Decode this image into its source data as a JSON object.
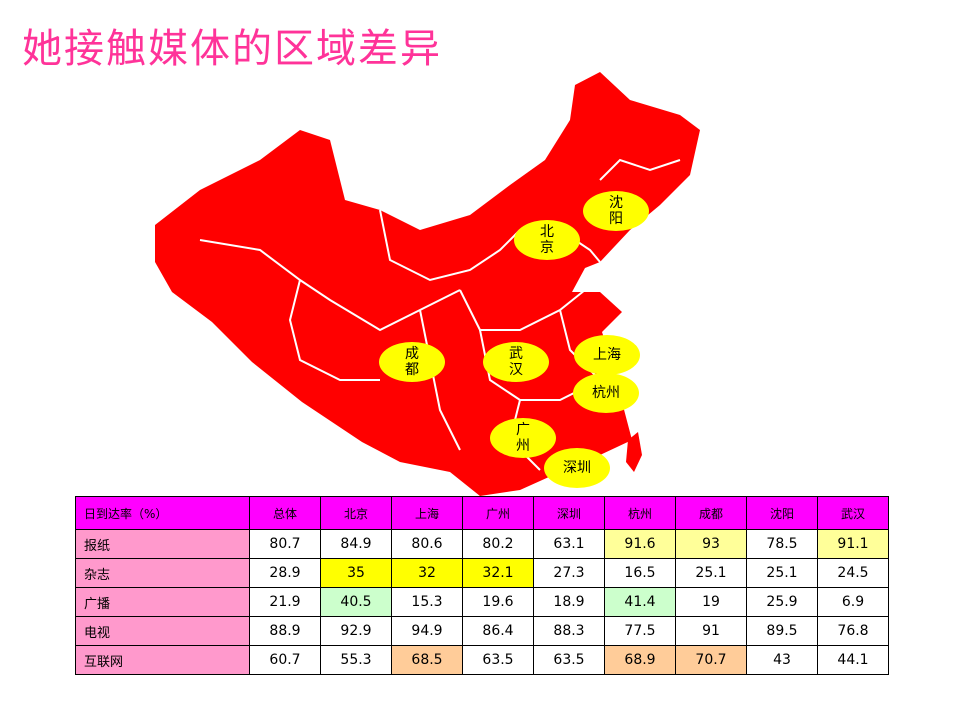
{
  "header": {
    "title": "她接触媒体的区域差异"
  },
  "map": {
    "cities": [
      "北京",
      "沈阳",
      "成都",
      "武汉",
      "上海",
      "杭州",
      "广州",
      "深圳"
    ]
  },
  "table": {
    "columns": [
      "日到达率（%）",
      "总体",
      "北京",
      "上海",
      "广州",
      "深圳",
      "杭州",
      "成都",
      "沈阳",
      "武汉"
    ],
    "rows": [
      {
        "label": "报纸",
        "values": [
          80.7,
          84.9,
          80.6,
          80.2,
          63.1,
          91.6,
          93,
          78.5,
          91.1
        ]
      },
      {
        "label": "杂志",
        "values": [
          28.9,
          35,
          32,
          32.1,
          27.3,
          16.5,
          25.1,
          25.1,
          24.5
        ]
      },
      {
        "label": "广播",
        "values": [
          21.9,
          40.5,
          15.3,
          19.6,
          18.9,
          41.4,
          19,
          25.9,
          6.9
        ]
      },
      {
        "label": "电视",
        "values": [
          88.9,
          92.9,
          94.9,
          86.4,
          88.3,
          77.5,
          91,
          89.5,
          76.8
        ]
      },
      {
        "label": "互联网",
        "values": [
          60.7,
          55.3,
          68.5,
          63.5,
          63.5,
          68.9,
          70.7,
          43,
          44.1
        ]
      }
    ]
  }
}
